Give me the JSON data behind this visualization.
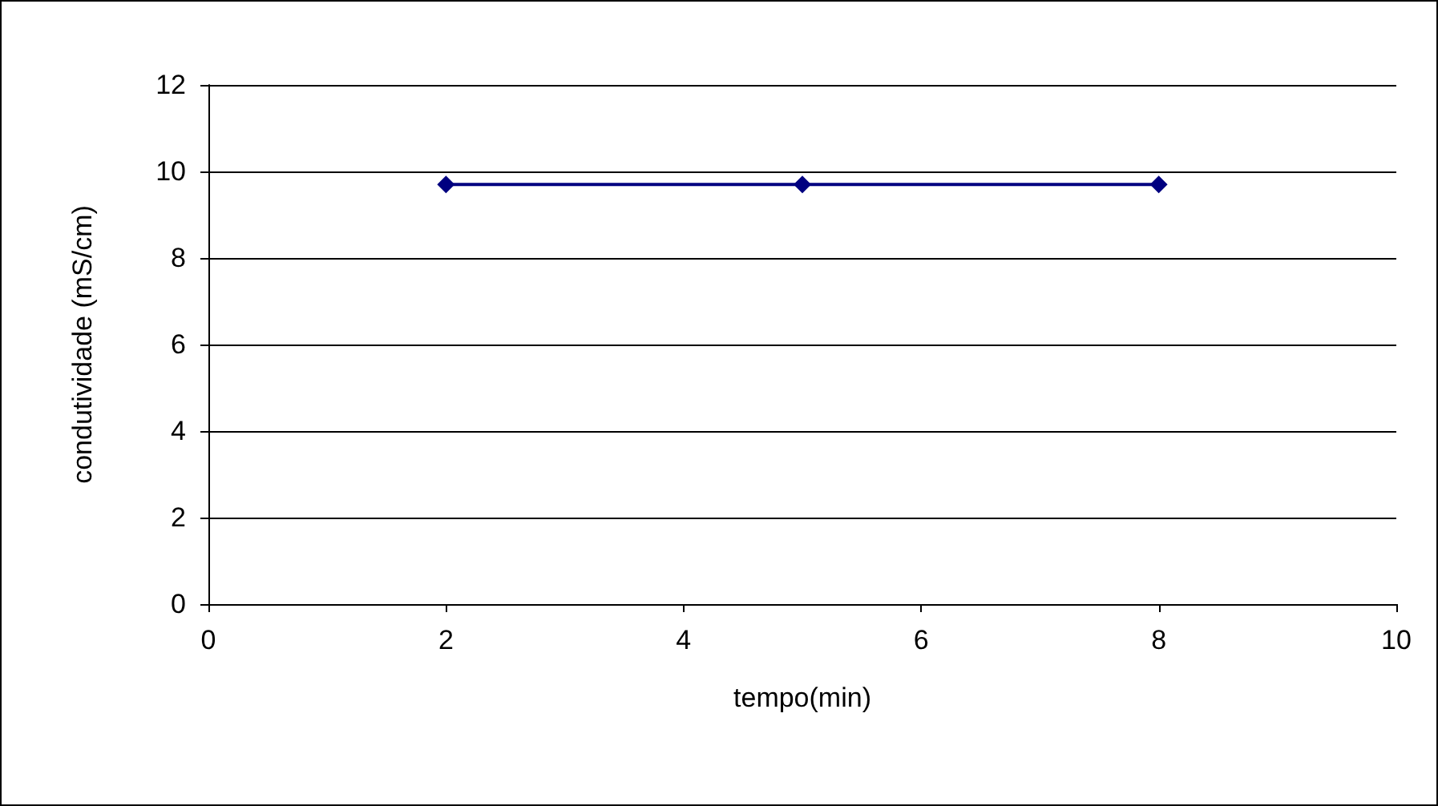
{
  "chart_data": {
    "type": "line",
    "xlabel": "tempo(min)",
    "ylabel": "condutividade (mS/cm)",
    "x": [
      2,
      5,
      8
    ],
    "series": [
      {
        "color": "#000080",
        "values": [
          9.7,
          9.7,
          9.7
        ]
      }
    ],
    "xlim": [
      0,
      10
    ],
    "xticks": [
      0,
      2,
      4,
      6,
      8,
      10
    ],
    "ylim": [
      0,
      12
    ],
    "yticks": [
      0,
      2,
      4,
      6,
      8,
      10,
      12
    ],
    "grid": "y",
    "marker": "diamond",
    "line_style": "solid"
  }
}
